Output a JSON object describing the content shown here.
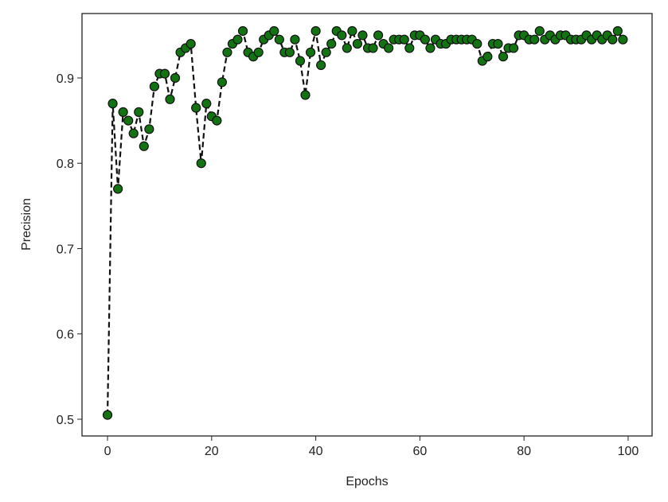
{
  "chart_data": {
    "type": "line",
    "xlabel": "Epochs",
    "ylabel": "Precision",
    "x": [
      0,
      1,
      2,
      3,
      4,
      5,
      6,
      7,
      8,
      9,
      10,
      11,
      12,
      13,
      14,
      15,
      16,
      17,
      18,
      19,
      20,
      21,
      22,
      23,
      24,
      25,
      26,
      27,
      28,
      29,
      30,
      31,
      32,
      33,
      34,
      35,
      36,
      37,
      38,
      39,
      40,
      41,
      42,
      43,
      44,
      45,
      46,
      47,
      48,
      49,
      50,
      51,
      52,
      53,
      54,
      55,
      56,
      57,
      58,
      59,
      60,
      61,
      62,
      63,
      64,
      65,
      66,
      67,
      68,
      69,
      70,
      71,
      72,
      73,
      74,
      75,
      76,
      77,
      78,
      79,
      80,
      81,
      82,
      83,
      84,
      85,
      86,
      87,
      88,
      89,
      90,
      91,
      92,
      93,
      94,
      95,
      96,
      97,
      98,
      99
    ],
    "values": [
      0.505,
      0.87,
      0.77,
      0.86,
      0.85,
      0.835,
      0.86,
      0.82,
      0.84,
      0.89,
      0.905,
      0.905,
      0.875,
      0.9,
      0.93,
      0.935,
      0.94,
      0.865,
      0.8,
      0.87,
      0.855,
      0.85,
      0.895,
      0.93,
      0.94,
      0.945,
      0.955,
      0.93,
      0.925,
      0.93,
      0.945,
      0.95,
      0.955,
      0.945,
      0.93,
      0.93,
      0.945,
      0.92,
      0.88,
      0.93,
      0.955,
      0.915,
      0.93,
      0.94,
      0.955,
      0.95,
      0.935,
      0.955,
      0.94,
      0.95,
      0.935,
      0.935,
      0.95,
      0.94,
      0.935,
      0.945,
      0.945,
      0.945,
      0.935,
      0.95,
      0.95,
      0.945,
      0.935,
      0.945,
      0.94,
      0.94,
      0.945,
      0.945,
      0.945,
      0.945,
      0.945,
      0.94,
      0.92,
      0.925,
      0.94,
      0.94,
      0.925,
      0.935,
      0.935,
      0.95,
      0.95,
      0.945,
      0.945,
      0.955,
      0.945,
      0.95,
      0.945,
      0.95,
      0.95,
      0.945,
      0.945,
      0.945,
      0.95,
      0.945,
      0.95,
      0.945,
      0.95,
      0.945,
      0.955,
      0.945
    ],
    "color": "#137313",
    "line_color": "#111111",
    "xlim": [
      -4.9,
      104.6
    ],
    "ylim": [
      0.4804,
      0.9755
    ],
    "xticks": [
      0,
      20,
      40,
      60,
      80,
      100
    ],
    "yticks": [
      0.5,
      0.6,
      0.7,
      0.8,
      0.9
    ]
  }
}
